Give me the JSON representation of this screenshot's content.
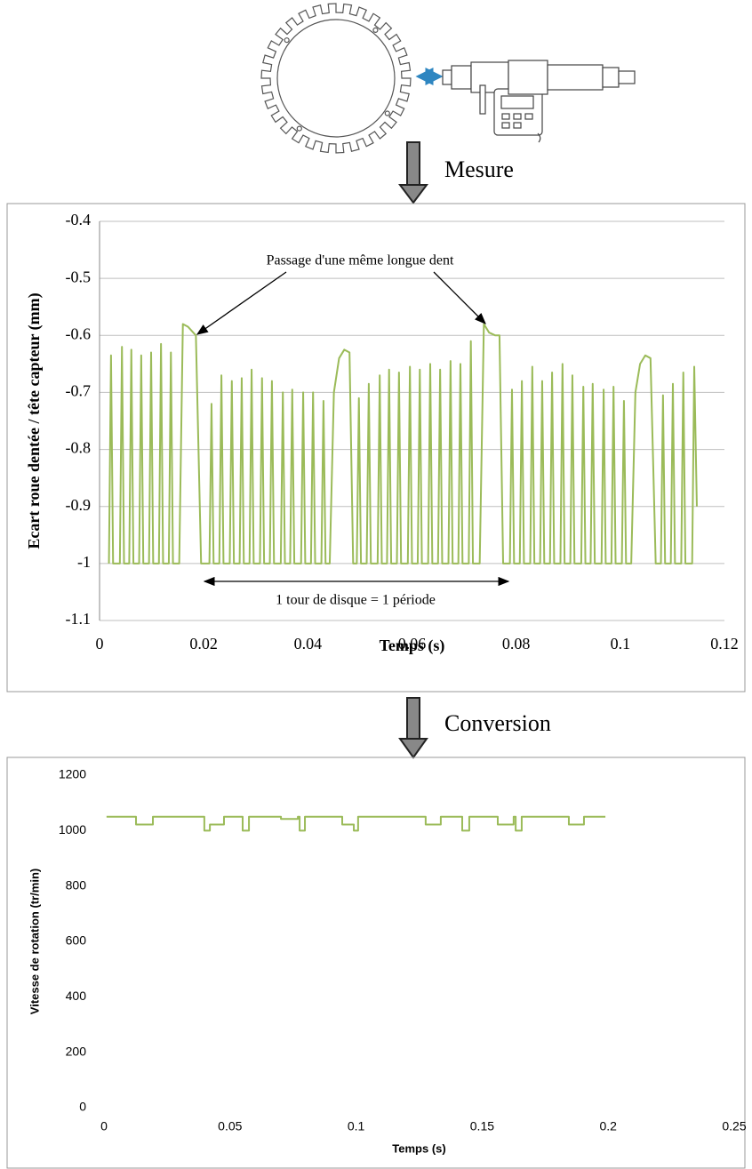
{
  "captions": {
    "measure": "Mesure",
    "conversion": "Conversion"
  },
  "chart_data": [
    {
      "type": "line",
      "ylabel": "Ecart roue dentée / tête capteur (mm)",
      "xlabel": "Temps (s)",
      "annotations": [
        "Passage d'une même longue dent",
        "1 tour de disque = 1 période"
      ],
      "color": "#9bbb59",
      "grid": true,
      "xlim": [
        0,
        0.12
      ],
      "xticks": [
        0,
        0.02,
        0.04,
        0.06,
        0.08,
        0.1,
        0.12
      ],
      "ylim": [
        -1.1,
        -0.4
      ],
      "yticks": [
        -1.1,
        -1,
        -0.9,
        -0.8,
        -0.7,
        -0.6,
        -0.5,
        -0.4
      ],
      "x": [
        0.0018,
        0.0022,
        0.0026,
        0.0039,
        0.0043,
        0.0047,
        0.0057,
        0.0061,
        0.0065,
        0.0076,
        0.008,
        0.0084,
        0.0095,
        0.0099,
        0.0103,
        0.0114,
        0.0118,
        0.0122,
        0.0133,
        0.0137,
        0.0141,
        0.0153,
        0.016,
        0.017,
        0.0185,
        0.0195,
        0.0211,
        0.0215,
        0.0219,
        0.023,
        0.0234,
        0.0238,
        0.025,
        0.0254,
        0.0258,
        0.0269,
        0.0273,
        0.0277,
        0.0288,
        0.0292,
        0.0296,
        0.0308,
        0.0312,
        0.0316,
        0.0327,
        0.0331,
        0.0335,
        0.0348,
        0.0352,
        0.0356,
        0.0366,
        0.037,
        0.0374,
        0.0387,
        0.0391,
        0.0395,
        0.0406,
        0.041,
        0.0414,
        0.0426,
        0.043,
        0.0434,
        0.0442,
        0.045,
        0.046,
        0.047,
        0.048,
        0.0487,
        0.0494,
        0.0498,
        0.0502,
        0.0513,
        0.0517,
        0.0521,
        0.0534,
        0.0538,
        0.0542,
        0.0552,
        0.0556,
        0.056,
        0.0571,
        0.0575,
        0.0579,
        0.0592,
        0.0596,
        0.06,
        0.0611,
        0.0615,
        0.0619,
        0.0631,
        0.0635,
        0.0639,
        0.065,
        0.0654,
        0.0658,
        0.067,
        0.0674,
        0.0678,
        0.0689,
        0.0693,
        0.0697,
        0.0709,
        0.0713,
        0.0717,
        0.073,
        0.0738,
        0.0748,
        0.076,
        0.0768,
        0.0775,
        0.0788,
        0.0792,
        0.0796,
        0.0807,
        0.0811,
        0.0815,
        0.0827,
        0.0831,
        0.0835,
        0.0846,
        0.085,
        0.0854,
        0.0865,
        0.0869,
        0.0873,
        0.0885,
        0.0889,
        0.0893,
        0.0904,
        0.0908,
        0.0912,
        0.0925,
        0.0929,
        0.0933,
        0.0943,
        0.0947,
        0.0951,
        0.0964,
        0.0968,
        0.0972,
        0.0983,
        0.0987,
        0.0991,
        0.1003,
        0.1007,
        0.1011,
        0.1021,
        0.1029,
        0.1038,
        0.1048,
        0.1058,
        0.1068,
        0.1078,
        0.1082,
        0.1086,
        0.1097,
        0.1101,
        0.1105,
        0.1117,
        0.1121,
        0.1125,
        0.1138,
        0.1142,
        0.1147
      ],
      "values": [
        -1,
        -0.635,
        -1,
        -1,
        -0.62,
        -1,
        -1,
        -0.625,
        -1,
        -1,
        -0.635,
        -1,
        -1,
        -0.63,
        -1,
        -1,
        -0.615,
        -1,
        -1,
        -0.63,
        -1,
        -1,
        -0.58,
        -0.585,
        -0.6,
        -1,
        -1,
        -0.72,
        -1,
        -1,
        -0.67,
        -1,
        -1,
        -0.68,
        -1,
        -1,
        -0.675,
        -1,
        -1,
        -0.66,
        -1,
        -1,
        -0.675,
        -1,
        -1,
        -0.68,
        -1,
        -1,
        -0.7,
        -1,
        -1,
        -0.695,
        -1,
        -1,
        -0.7,
        -1,
        -1,
        -0.7,
        -1,
        -1,
        -0.715,
        -1,
        -1,
        -0.7,
        -0.64,
        -0.625,
        -0.63,
        -1,
        -1,
        -0.71,
        -1,
        -1,
        -0.685,
        -1,
        -1,
        -0.67,
        -1,
        -1,
        -0.66,
        -1,
        -1,
        -0.665,
        -1,
        -1,
        -0.655,
        -1,
        -1,
        -0.66,
        -1,
        -1,
        -0.65,
        -1,
        -1,
        -0.66,
        -1,
        -1,
        -0.645,
        -1,
        -1,
        -0.65,
        -1,
        -1,
        -0.61,
        -1,
        -1,
        -0.58,
        -0.595,
        -0.6,
        -0.6,
        -1,
        -1,
        -0.695,
        -1,
        -1,
        -0.68,
        -1,
        -1,
        -0.655,
        -1,
        -1,
        -0.68,
        -1,
        -1,
        -0.665,
        -1,
        -1,
        -0.65,
        -1,
        -1,
        -0.67,
        -1,
        -1,
        -0.69,
        -1,
        -1,
        -0.685,
        -1,
        -1,
        -0.695,
        -1,
        -1,
        -0.69,
        -1,
        -1,
        -0.715,
        -1,
        -1,
        -0.7,
        -0.65,
        -0.635,
        -0.64,
        -1,
        -1,
        -0.705,
        -1,
        -1,
        -0.685,
        -1,
        -1,
        -0.665,
        -1,
        -1,
        -0.655,
        -0.9
      ]
    },
    {
      "type": "line",
      "ylabel": "Vitesse de rotation (tr/min)",
      "xlabel": "Temps (s)",
      "color": "#9bbb59",
      "grid": false,
      "xlim": [
        0,
        0.25
      ],
      "xticks": [
        0,
        0.05,
        0.1,
        0.15,
        0.2,
        0.25
      ],
      "ylim": [
        0,
        1200
      ],
      "yticks": [
        0,
        200,
        400,
        600,
        800,
        1000,
        1200
      ],
      "x": [
        0.001,
        0.0127,
        0.0127,
        0.0194,
        0.0194,
        0.0398,
        0.0398,
        0.042,
        0.042,
        0.0476,
        0.0476,
        0.055,
        0.055,
        0.0575,
        0.0575,
        0.0702,
        0.0702,
        0.0769,
        0.0769,
        0.0776,
        0.0776,
        0.0797,
        0.0797,
        0.0945,
        0.0945,
        0.0991,
        0.0991,
        0.1008,
        0.1008,
        0.1276,
        0.1276,
        0.1336,
        0.1336,
        0.1421,
        0.1421,
        0.1449,
        0.1449,
        0.1562,
        0.1562,
        0.1625,
        0.1625,
        0.1633,
        0.1633,
        0.1657,
        0.1657,
        0.1844,
        0.1844,
        0.1904,
        0.1904,
        0.1989
      ],
      "values": [
        1050,
        1050,
        1022,
        1022,
        1050,
        1050,
        1000,
        1000,
        1022,
        1022,
        1050,
        1050,
        1000,
        1000,
        1050,
        1050,
        1042,
        1042,
        1050,
        1050,
        1000,
        1000,
        1050,
        1050,
        1022,
        1022,
        1000,
        1000,
        1050,
        1050,
        1022,
        1022,
        1050,
        1050,
        1000,
        1000,
        1050,
        1050,
        1022,
        1022,
        1050,
        1050,
        1000,
        1000,
        1050,
        1050,
        1022,
        1022,
        1050,
        1050
      ]
    }
  ]
}
